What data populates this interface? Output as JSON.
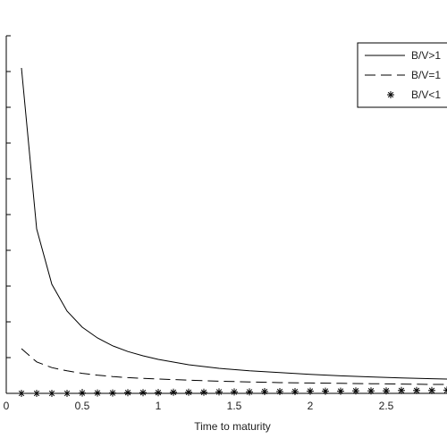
{
  "chart_data": {
    "type": "line",
    "title": "",
    "xlabel": "Time to maturity",
    "ylabel": "",
    "xlim": [
      0,
      2.9
    ],
    "ylim": [
      0,
      1
    ],
    "x_ticks": [
      "0",
      "0.5",
      "1",
      "1.5",
      "2",
      "2.5"
    ],
    "x_tick_values": [
      0,
      0.5,
      1,
      1.5,
      2,
      2.5
    ],
    "y_tick_values": [
      0,
      0.1,
      0.2,
      0.3,
      0.4,
      0.5,
      0.6,
      0.7,
      0.8,
      0.9,
      1.0
    ],
    "grid": false,
    "legend_position": "top-right",
    "series": [
      {
        "name": "B/V>1",
        "style": "solid",
        "x": [
          0.1,
          0.2,
          0.3,
          0.4,
          0.5,
          0.6,
          0.7,
          0.8,
          0.9,
          1.0,
          1.2,
          1.4,
          1.6,
          1.8,
          2.0,
          2.2,
          2.4,
          2.6,
          2.8,
          2.9
        ],
        "y": [
          0.91,
          0.46,
          0.305,
          0.23,
          0.185,
          0.155,
          0.133,
          0.117,
          0.105,
          0.095,
          0.08,
          0.07,
          0.063,
          0.058,
          0.053,
          0.049,
          0.046,
          0.043,
          0.041,
          0.04
        ]
      },
      {
        "name": "B/V=1",
        "style": "dashed",
        "x": [
          0.1,
          0.2,
          0.3,
          0.4,
          0.5,
          0.6,
          0.7,
          0.8,
          0.9,
          1.0,
          1.2,
          1.4,
          1.6,
          1.8,
          2.0,
          2.2,
          2.4,
          2.6,
          2.8,
          2.9
        ],
        "y": [
          0.125,
          0.088,
          0.072,
          0.063,
          0.056,
          0.051,
          0.047,
          0.044,
          0.042,
          0.04,
          0.037,
          0.034,
          0.032,
          0.03,
          0.029,
          0.028,
          0.027,
          0.026,
          0.025,
          0.025
        ]
      },
      {
        "name": "B/V<1",
        "style": "asterisk",
        "x": [
          0.1,
          0.2,
          0.3,
          0.4,
          0.5,
          0.6,
          0.7,
          0.8,
          0.9,
          1.0,
          1.1,
          1.2,
          1.3,
          1.4,
          1.5,
          1.6,
          1.7,
          1.8,
          1.9,
          2.0,
          2.1,
          2.2,
          2.3,
          2.4,
          2.5,
          2.6,
          2.7,
          2.8,
          2.9
        ],
        "y": [
          0.0,
          0.0,
          0.0,
          0.0,
          0.001,
          0.001,
          0.001,
          0.002,
          0.002,
          0.002,
          0.003,
          0.003,
          0.003,
          0.004,
          0.004,
          0.004,
          0.005,
          0.005,
          0.005,
          0.006,
          0.006,
          0.006,
          0.007,
          0.007,
          0.007,
          0.008,
          0.008,
          0.008,
          0.009
        ]
      }
    ]
  }
}
